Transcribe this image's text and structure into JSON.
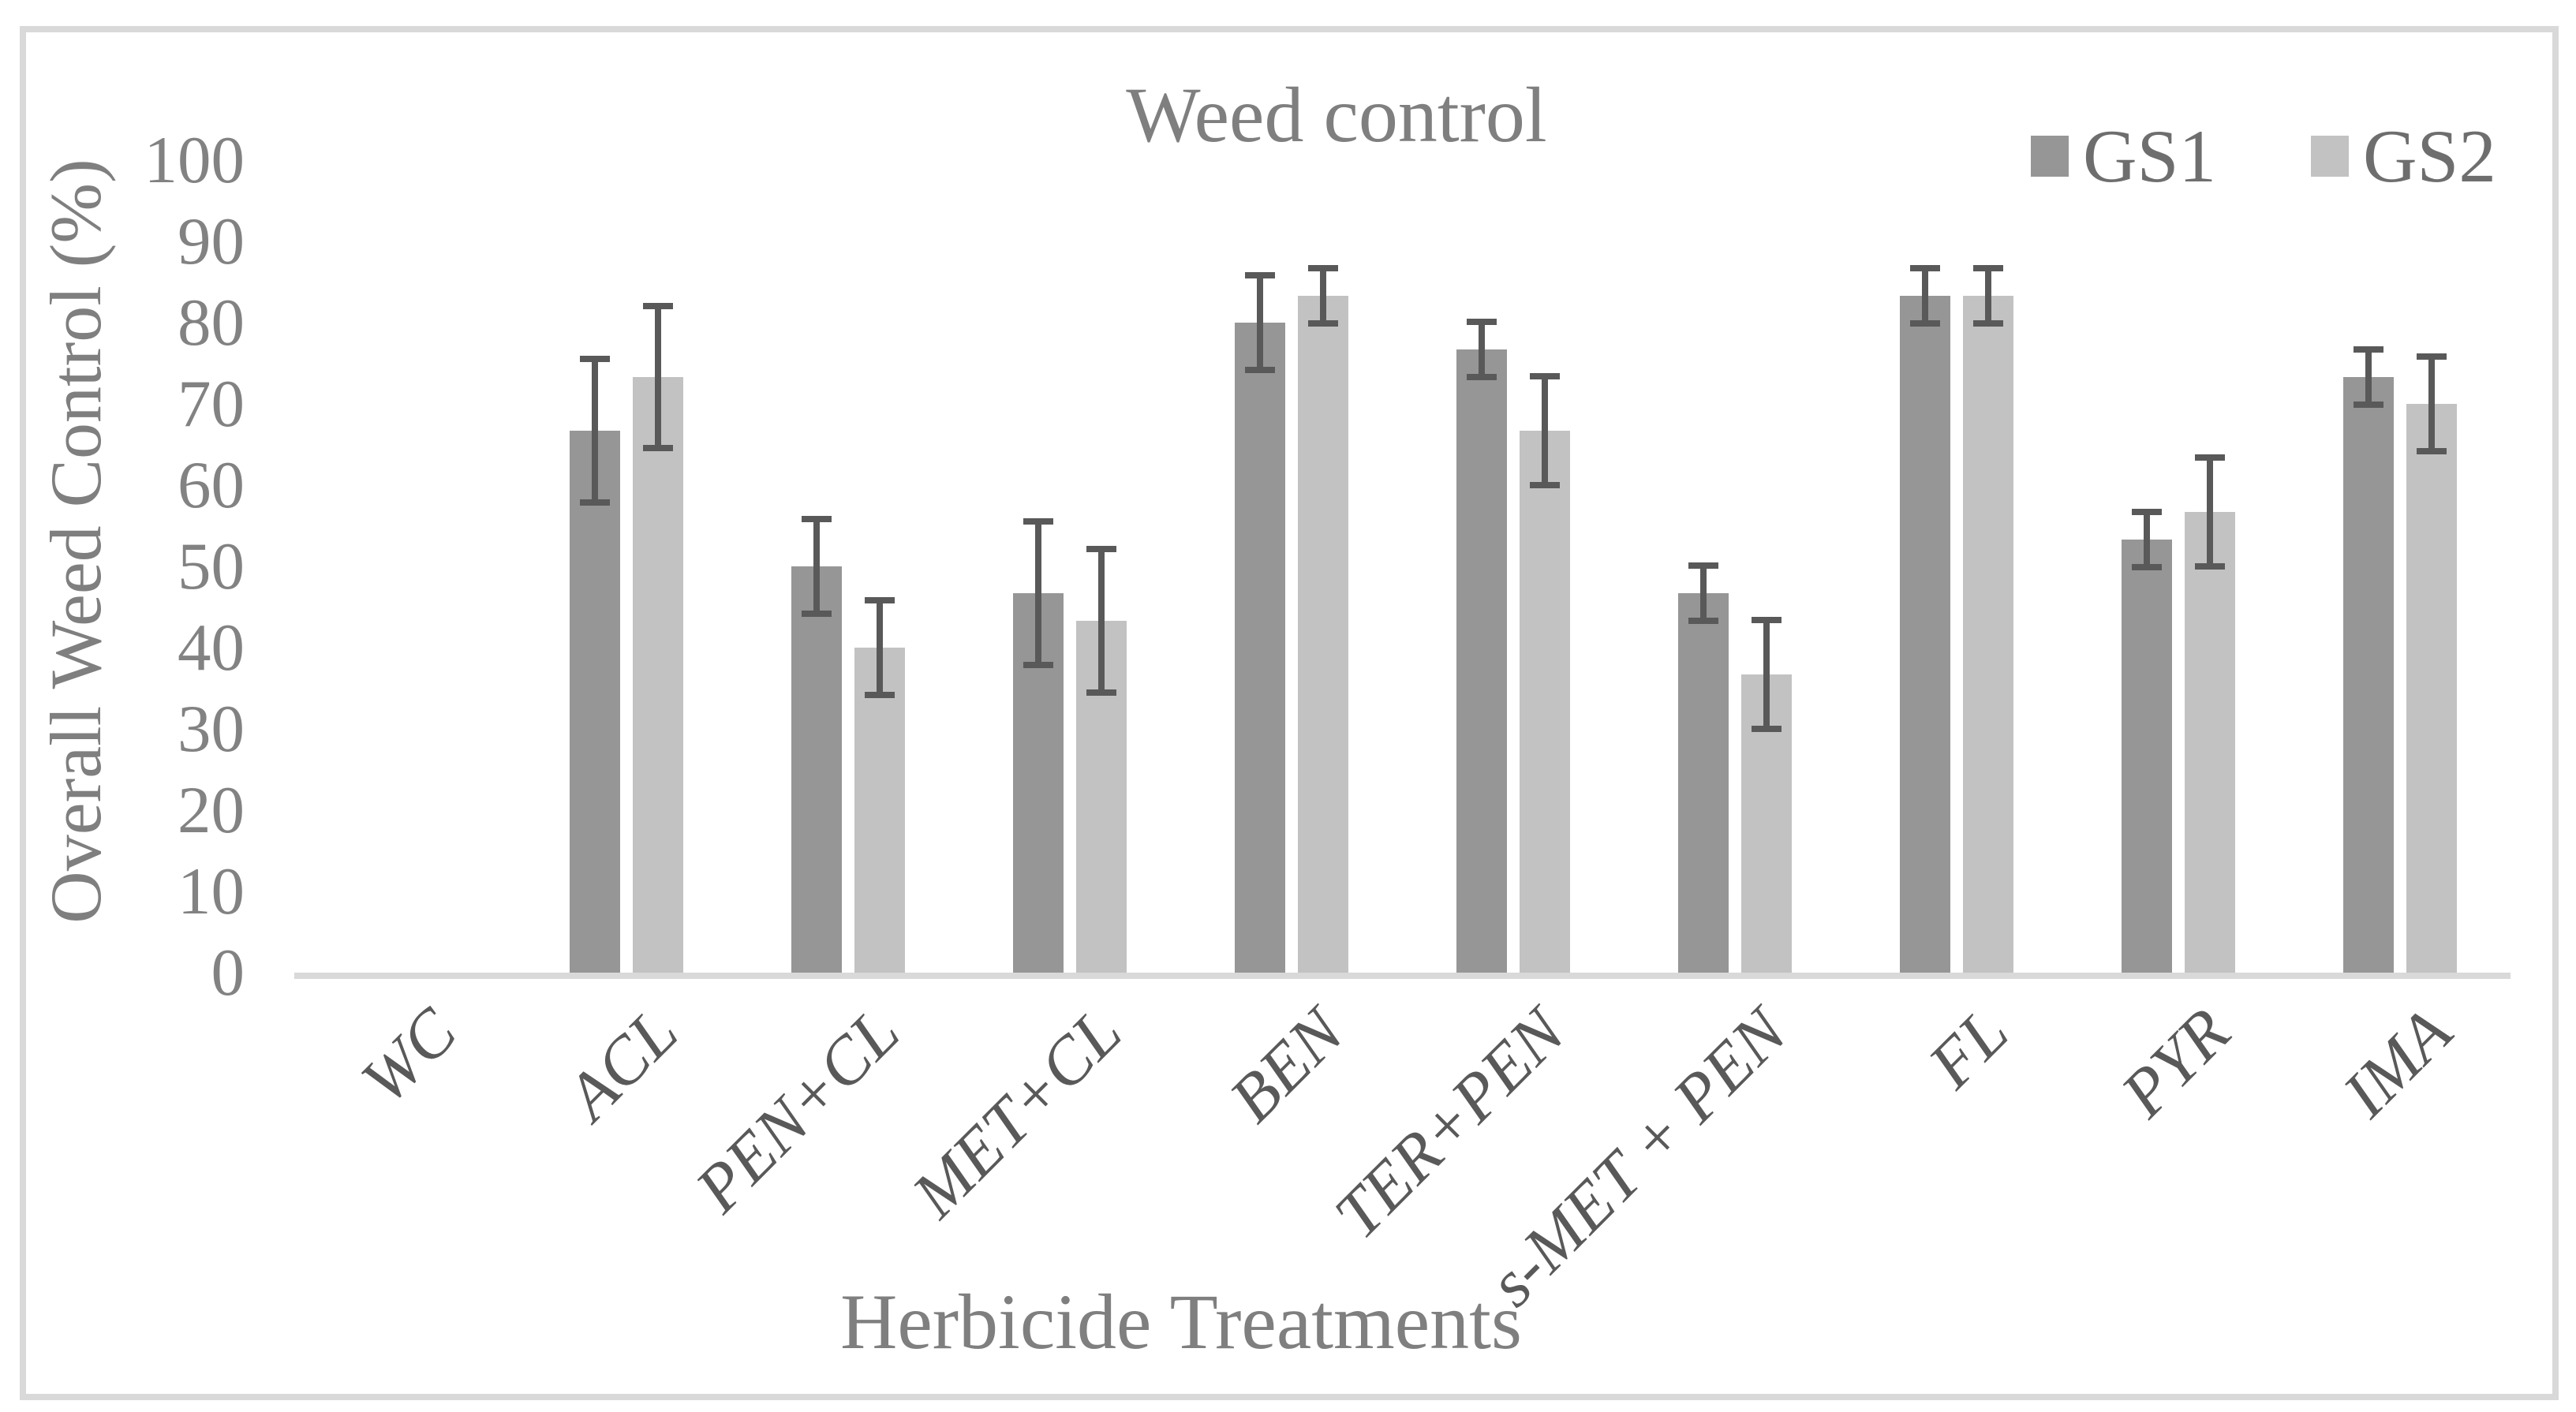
{
  "palette": {
    "frame": "#d9d9d9",
    "axis_line": "#d9d9d9",
    "title_text": "#7f7f7f",
    "tick_text": "#828282",
    "category_text": "#595959",
    "axis_title_text": "#7f7f7f",
    "legend_text": "#6e6e6e",
    "gs1_bar": "#969696",
    "gs2_bar": "#c2c2c2",
    "error_bar": "#595959",
    "background": "#ffffff"
  },
  "chart_data": {
    "type": "bar",
    "title": "Weed control",
    "xlabel": "Herbicide Treatments",
    "ylabel": "Overall Weed Control (%)",
    "ylim": [
      0,
      100
    ],
    "yticks": [
      0,
      10,
      20,
      30,
      40,
      50,
      60,
      70,
      80,
      90,
      100
    ],
    "grid": false,
    "error_bars": true,
    "legend_position": "top-right",
    "categories": [
      "WC",
      "ACL",
      "PEN+CL",
      "MET+CL",
      "BEN",
      "TER+PEN",
      "s-MET + PEN",
      "FL",
      "PYR",
      "IMA"
    ],
    "series": [
      {
        "name": "GS1",
        "color": "#969696",
        "values": [
          0,
          66.7,
          50,
          46.7,
          80,
          76.7,
          46.7,
          83.3,
          53.3,
          73.3
        ],
        "errors": [
          0,
          8.8,
          5.8,
          8.8,
          5.8,
          3.4,
          3.4,
          3.4,
          3.4,
          3.4
        ]
      },
      {
        "name": "GS2",
        "color": "#c2c2c2",
        "values": [
          0,
          73.3,
          40,
          43.3,
          83.3,
          66.7,
          36.7,
          83.3,
          56.7,
          70
        ],
        "errors": [
          0,
          8.7,
          5.8,
          8.8,
          3.4,
          6.7,
          6.7,
          3.4,
          6.7,
          5.8
        ]
      }
    ]
  }
}
